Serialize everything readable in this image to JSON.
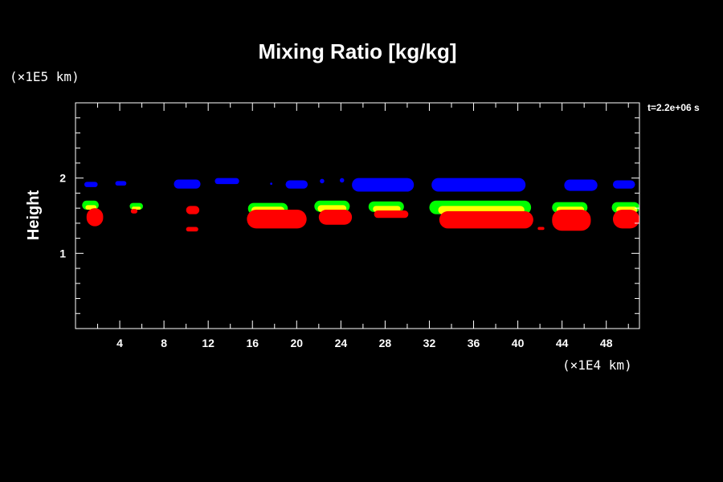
{
  "chart_data": {
    "type": "area",
    "title": "Mixing Ratio [kg/kg]",
    "ylabel": "Height",
    "xlabel": "",
    "x_unit": "(×1E4 km)",
    "y_unit": "(×1E5 km)",
    "time_label": "t=2.2e+06 s",
    "xlim": [
      0,
      51
    ],
    "ylim": [
      0,
      3
    ],
    "x_ticks": [
      4,
      8,
      12,
      16,
      20,
      24,
      28,
      32,
      36,
      40,
      44,
      48
    ],
    "y_ticks": [
      1,
      2
    ],
    "y_minor_step": 0.2,
    "x_minor_step": 2,
    "grid": false,
    "levels": [
      {
        "color": "#0000ff",
        "blobs": [
          {
            "x0": 0.8,
            "x1": 2.0,
            "ytop": 1.95,
            "ybot": 1.88
          },
          {
            "x0": 3.6,
            "x1": 4.6,
            "ytop": 1.96,
            "ybot": 1.9
          },
          {
            "x0": 8.9,
            "x1": 11.3,
            "ytop": 1.98,
            "ybot": 1.86
          },
          {
            "x0": 12.6,
            "x1": 14.8,
            "ytop": 2.0,
            "ybot": 1.92
          },
          {
            "x0": 17.6,
            "x1": 17.8,
            "ytop": 1.94,
            "ybot": 1.91
          },
          {
            "x0": 19.0,
            "x1": 21.0,
            "ytop": 1.97,
            "ybot": 1.86
          },
          {
            "x0": 22.1,
            "x1": 22.5,
            "ytop": 1.99,
            "ybot": 1.93
          },
          {
            "x0": 23.9,
            "x1": 24.3,
            "ytop": 2.0,
            "ybot": 1.94
          },
          {
            "x0": 25.0,
            "x1": 30.6,
            "ytop": 2.0,
            "ybot": 1.82
          },
          {
            "x0": 32.2,
            "x1": 40.7,
            "ytop": 2.0,
            "ybot": 1.82
          },
          {
            "x0": 44.2,
            "x1": 47.2,
            "ytop": 1.98,
            "ybot": 1.83
          },
          {
            "x0": 48.6,
            "x1": 50.6,
            "ytop": 1.97,
            "ybot": 1.86
          }
        ]
      },
      {
        "color": "#00ff00",
        "blobs": [
          {
            "x0": 0.6,
            "x1": 2.1,
            "ytop": 1.7,
            "ybot": 1.58
          },
          {
            "x0": 4.9,
            "x1": 6.1,
            "ytop": 1.67,
            "ybot": 1.58
          },
          {
            "x0": 15.6,
            "x1": 19.2,
            "ytop": 1.67,
            "ybot": 1.52
          },
          {
            "x0": 21.6,
            "x1": 24.8,
            "ytop": 1.7,
            "ybot": 1.55
          },
          {
            "x0": 26.5,
            "x1": 29.7,
            "ytop": 1.69,
            "ybot": 1.55
          },
          {
            "x0": 32.0,
            "x1": 41.2,
            "ytop": 1.7,
            "ybot": 1.52
          },
          {
            "x0": 43.1,
            "x1": 46.3,
            "ytop": 1.68,
            "ybot": 1.54
          },
          {
            "x0": 48.5,
            "x1": 51.0,
            "ytop": 1.68,
            "ybot": 1.54
          }
        ]
      },
      {
        "color": "#ffff00",
        "blobs": [
          {
            "x0": 0.9,
            "x1": 1.9,
            "ytop": 1.64,
            "ybot": 1.58
          },
          {
            "x0": 5.1,
            "x1": 5.9,
            "ytop": 1.62,
            "ybot": 1.58
          },
          {
            "x0": 15.9,
            "x1": 18.9,
            "ytop": 1.62,
            "ybot": 1.52
          },
          {
            "x0": 21.9,
            "x1": 24.5,
            "ytop": 1.64,
            "ybot": 1.55
          },
          {
            "x0": 26.9,
            "x1": 29.4,
            "ytop": 1.63,
            "ybot": 1.55
          },
          {
            "x0": 32.8,
            "x1": 40.6,
            "ytop": 1.63,
            "ybot": 1.52
          },
          {
            "x0": 43.5,
            "x1": 46.0,
            "ytop": 1.62,
            "ybot": 1.54
          },
          {
            "x0": 48.9,
            "x1": 50.8,
            "ytop": 1.62,
            "ybot": 1.54
          }
        ]
      },
      {
        "color": "#ff0000",
        "blobs": [
          {
            "x0": 1.0,
            "x1": 2.5,
            "ytop": 1.6,
            "ybot": 1.36
          },
          {
            "x0": 5.0,
            "x1": 5.6,
            "ytop": 1.59,
            "ybot": 1.53
          },
          {
            "x0": 10.0,
            "x1": 11.2,
            "ytop": 1.63,
            "ybot": 1.52
          },
          {
            "x0": 10.0,
            "x1": 11.1,
            "ytop": 1.35,
            "ybot": 1.29
          },
          {
            "x0": 15.5,
            "x1": 20.9,
            "ytop": 1.58,
            "ybot": 1.33
          },
          {
            "x0": 22.0,
            "x1": 25.0,
            "ytop": 1.58,
            "ybot": 1.38
          },
          {
            "x0": 27.0,
            "x1": 30.1,
            "ytop": 1.57,
            "ybot": 1.47
          },
          {
            "x0": 32.9,
            "x1": 41.4,
            "ytop": 1.56,
            "ybot": 1.33
          },
          {
            "x0": 41.8,
            "x1": 42.4,
            "ytop": 1.35,
            "ybot": 1.31
          },
          {
            "x0": 43.1,
            "x1": 46.6,
            "ytop": 1.58,
            "ybot": 1.3
          },
          {
            "x0": 48.6,
            "x1": 51.0,
            "ytop": 1.58,
            "ybot": 1.33
          }
        ]
      }
    ]
  }
}
